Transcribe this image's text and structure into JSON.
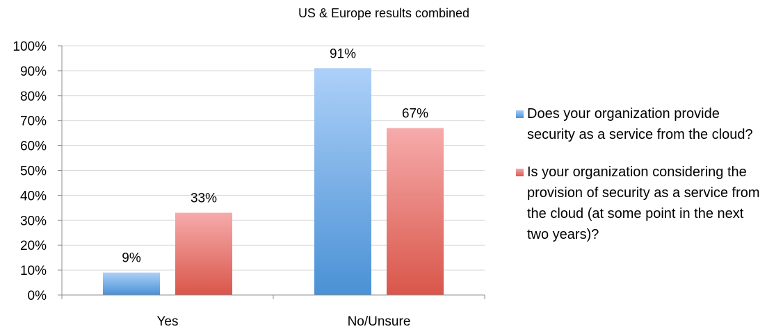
{
  "chart_data": {
    "type": "bar",
    "title": "US & Europe results combined",
    "categories": [
      "Yes",
      "No/Unsure"
    ],
    "series": [
      {
        "name": "Does your organization provide security as a service from the cloud?",
        "values": [
          9,
          91
        ],
        "color": "#5b9bd5"
      },
      {
        "name": "Is your organization considering the provision of security as a service from the cloud (at some point in the next two years)?",
        "values": [
          33,
          67
        ],
        "color": "#e0615a"
      }
    ],
    "data_labels": [
      [
        "9%",
        "91%"
      ],
      [
        "33%",
        "67%"
      ]
    ],
    "y_ticks": [
      "0%",
      "10%",
      "20%",
      "30%",
      "40%",
      "50%",
      "60%",
      "70%",
      "80%",
      "90%",
      "100%"
    ],
    "ylim": [
      0,
      100
    ],
    "grid": true,
    "legend_position": "right"
  }
}
